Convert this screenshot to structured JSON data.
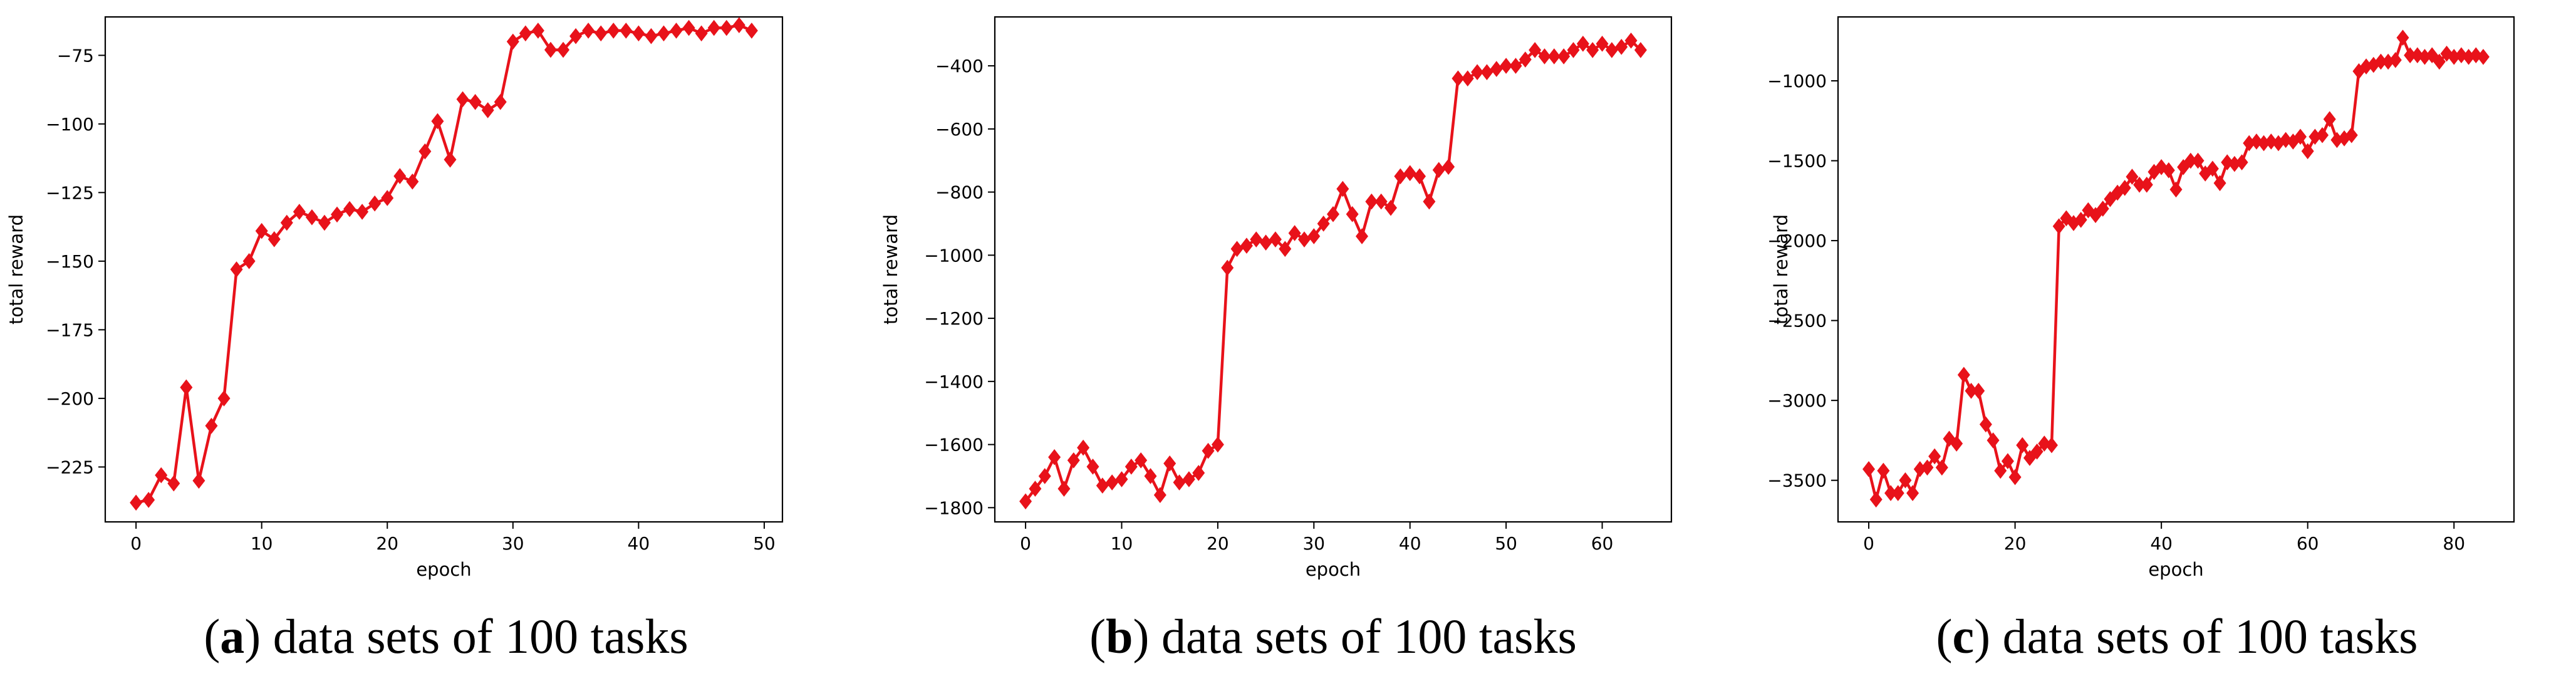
{
  "chart_data": [
    {
      "type": "line",
      "xlabel": "epoch",
      "ylabel": "total reward",
      "xlim": [
        -2.45,
        51.45
      ],
      "ylim": [
        -245,
        -61
      ],
      "xticks": [
        0,
        10,
        20,
        30,
        40,
        50
      ],
      "yticks": [
        -225,
        -200,
        -175,
        -150,
        -125,
        -100,
        -75
      ],
      "series": [
        {
          "color": "#e8121a",
          "marker": "diamond",
          "x": [
            0,
            1,
            2,
            3,
            4,
            5,
            6,
            7,
            8,
            9,
            10,
            11,
            12,
            13,
            14,
            15,
            16,
            17,
            18,
            19,
            20,
            21,
            22,
            23,
            24,
            25,
            26,
            27,
            28,
            29,
            30,
            31,
            32,
            33,
            34,
            35,
            36,
            37,
            38,
            39,
            40,
            41,
            42,
            43,
            44,
            45,
            46,
            47,
            48,
            49
          ],
          "y": [
            -238,
            -237,
            -228,
            -231,
            -196,
            -230,
            -210,
            -200,
            -153,
            -150,
            -139,
            -142,
            -136,
            -132,
            -134,
            -136,
            -133,
            -131,
            -132,
            -129,
            -127,
            -119,
            -121,
            -110,
            -99,
            -113,
            -91,
            -92,
            -95,
            -92,
            -70,
            -67,
            -66,
            -73,
            -73,
            -68,
            -66,
            -67,
            -66,
            -66,
            -67,
            -68,
            -67,
            -66,
            -65,
            -67,
            -65,
            -65,
            -64,
            -66
          ]
        }
      ],
      "caption": {
        "letter": "a",
        "text": " data sets of 100 tasks"
      }
    },
    {
      "type": "line",
      "xlabel": "epoch",
      "ylabel": "total reward",
      "xlim": [
        -3.2,
        67.2
      ],
      "ylim": [
        -1845,
        -245
      ],
      "xticks": [
        0,
        10,
        20,
        30,
        40,
        50,
        60
      ],
      "yticks": [
        -1800,
        -1600,
        -1400,
        -1200,
        -1000,
        -800,
        -600,
        -400
      ],
      "series": [
        {
          "color": "#e8121a",
          "marker": "diamond",
          "x": [
            0,
            1,
            2,
            3,
            4,
            5,
            6,
            7,
            8,
            9,
            10,
            11,
            12,
            13,
            14,
            15,
            16,
            17,
            18,
            19,
            20,
            21,
            22,
            23,
            24,
            25,
            26,
            27,
            28,
            29,
            30,
            31,
            32,
            33,
            34,
            35,
            36,
            37,
            38,
            39,
            40,
            41,
            42,
            43,
            44,
            45,
            46,
            47,
            48,
            49,
            50,
            51,
            52,
            53,
            54,
            55,
            56,
            57,
            58,
            59,
            60,
            61,
            62,
            63,
            64
          ],
          "y": [
            -1780,
            -1740,
            -1700,
            -1640,
            -1740,
            -1650,
            -1610,
            -1670,
            -1730,
            -1720,
            -1710,
            -1670,
            -1650,
            -1700,
            -1760,
            -1660,
            -1720,
            -1710,
            -1690,
            -1620,
            -1600,
            -1040,
            -980,
            -970,
            -950,
            -960,
            -950,
            -980,
            -930,
            -950,
            -940,
            -900,
            -870,
            -790,
            -870,
            -940,
            -830,
            -830,
            -850,
            -750,
            -740,
            -750,
            -830,
            -730,
            -720,
            -440,
            -440,
            -420,
            -420,
            -410,
            -400,
            -400,
            -380,
            -350,
            -370,
            -370,
            -370,
            -350,
            -330,
            -350,
            -330,
            -350,
            -340,
            -320,
            -350
          ]
        }
      ],
      "caption": {
        "letter": "b",
        "text": " data sets of 100 tasks"
      }
    },
    {
      "type": "line",
      "xlabel": "epoch",
      "ylabel": "total reward",
      "xlim": [
        -4.2,
        88.2
      ],
      "ylim": [
        -3760,
        -600
      ],
      "xticks": [
        0,
        20,
        40,
        60,
        80
      ],
      "yticks": [
        -3500,
        -3000,
        -2500,
        -2000,
        -1500,
        -1000
      ],
      "series": [
        {
          "color": "#e8121a",
          "marker": "diamond",
          "x": [
            0,
            1,
            2,
            3,
            4,
            5,
            6,
            7,
            8,
            9,
            10,
            11,
            12,
            13,
            14,
            15,
            16,
            17,
            18,
            19,
            20,
            21,
            22,
            23,
            24,
            25,
            26,
            27,
            28,
            29,
            30,
            31,
            32,
            33,
            34,
            35,
            36,
            37,
            38,
            39,
            40,
            41,
            42,
            43,
            44,
            45,
            46,
            47,
            48,
            49,
            50,
            51,
            52,
            53,
            54,
            55,
            56,
            57,
            58,
            59,
            60,
            61,
            62,
            63,
            64,
            65,
            66,
            67,
            68,
            69,
            70,
            71,
            72,
            73,
            74,
            75,
            76,
            77,
            78,
            79,
            80,
            81,
            82,
            83,
            84
          ],
          "y": [
            -3430,
            -3620,
            -3440,
            -3580,
            -3580,
            -3500,
            -3580,
            -3430,
            -3420,
            -3350,
            -3420,
            -3240,
            -3270,
            -2840,
            -2940,
            -2940,
            -3150,
            -3250,
            -3440,
            -3380,
            -3480,
            -3280,
            -3360,
            -3320,
            -3270,
            -3280,
            -1910,
            -1860,
            -1890,
            -1870,
            -1810,
            -1840,
            -1800,
            -1740,
            -1700,
            -1670,
            -1600,
            -1650,
            -1650,
            -1570,
            -1540,
            -1560,
            -1680,
            -1540,
            -1500,
            -1500,
            -1580,
            -1550,
            -1640,
            -1510,
            -1520,
            -1510,
            -1390,
            -1380,
            -1390,
            -1380,
            -1390,
            -1370,
            -1380,
            -1350,
            -1440,
            -1350,
            -1340,
            -1240,
            -1370,
            -1360,
            -1340,
            -940,
            -910,
            -900,
            -880,
            -880,
            -870,
            -730,
            -840,
            -840,
            -850,
            -840,
            -880,
            -830,
            -850,
            -840,
            -850,
            -840,
            -850
          ]
        }
      ],
      "caption": {
        "letter": "c",
        "text": " data sets of 100 tasks"
      }
    }
  ]
}
